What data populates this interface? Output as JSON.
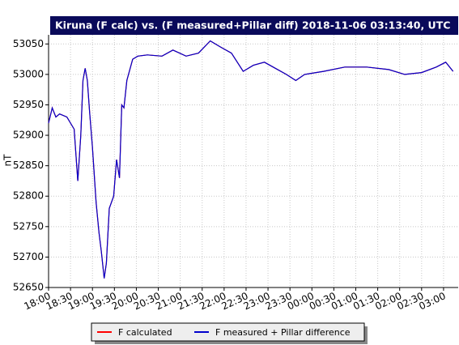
{
  "chart_data": {
    "type": "line",
    "title": "Kiruna (F calc) vs. (F measured+Pillar diff) 2018-11-06 03:13:40, UTC",
    "y_label": "nT",
    "x": [
      "18:00",
      "18:05",
      "18:10",
      "18:15",
      "18:25",
      "18:35",
      "18:40",
      "18:44",
      "18:47",
      "18:50",
      "18:53",
      "18:56",
      "19:00",
      "19:05",
      "19:09",
      "19:12",
      "19:16",
      "19:19",
      "19:23",
      "19:29",
      "19:33",
      "19:37",
      "19:40",
      "19:43",
      "19:47",
      "19:55",
      "20:02",
      "20:15",
      "20:35",
      "20:50",
      "21:08",
      "21:25",
      "21:41",
      "21:55",
      "22:10",
      "22:26",
      "22:40",
      "22:55",
      "23:10",
      "23:25",
      "23:38",
      "23:50",
      "00:16",
      "00:45",
      "01:15",
      "01:45",
      "02:07",
      "02:30",
      "02:50",
      "03:03",
      "03:13"
    ],
    "series": [
      {
        "name": "F calculated",
        "color": "#ff0000",
        "values": [
          52920,
          52945,
          52930,
          52935,
          52930,
          52910,
          52825,
          52900,
          52990,
          53010,
          52990,
          52940,
          52880,
          52790,
          52740,
          52710,
          52665,
          52690,
          52780,
          52800,
          52860,
          52830,
          52950,
          52945,
          52990,
          53025,
          53030,
          53032,
          53030,
          53040,
          53030,
          53035,
          53055,
          53045,
          53035,
          53005,
          53015,
          53020,
          53010,
          53000,
          52990,
          53000,
          53005,
          53012,
          53012,
          53008,
          53000,
          53003,
          53012,
          53020,
          53005
        ]
      },
      {
        "name": "F measured + Pillar difference",
        "color": "#0000cc",
        "values": [
          52920,
          52945,
          52930,
          52935,
          52930,
          52910,
          52825,
          52900,
          52990,
          53010,
          52990,
          52940,
          52880,
          52790,
          52740,
          52710,
          52665,
          52690,
          52780,
          52800,
          52860,
          52830,
          52950,
          52945,
          52990,
          53025,
          53030,
          53032,
          53030,
          53040,
          53030,
          53035,
          53055,
          53045,
          53035,
          53005,
          53015,
          53020,
          53010,
          53000,
          52990,
          53000,
          53005,
          53012,
          53012,
          53008,
          53000,
          53003,
          53012,
          53020,
          53005
        ]
      }
    ],
    "xlim": [
      "18:00",
      "03:20"
    ],
    "xticks": [
      "18:00",
      "18:30",
      "19:00",
      "19:30",
      "20:00",
      "20:30",
      "21:00",
      "21:30",
      "22:00",
      "22:30",
      "23:00",
      "23:30",
      "00:00",
      "00:30",
      "01:00",
      "01:30",
      "02:00",
      "02:30",
      "03:00"
    ],
    "ylim": [
      52650,
      53065
    ],
    "yticks": [
      52650,
      52700,
      52750,
      52800,
      52850,
      52900,
      52950,
      53000,
      53050
    ],
    "grid": true
  }
}
